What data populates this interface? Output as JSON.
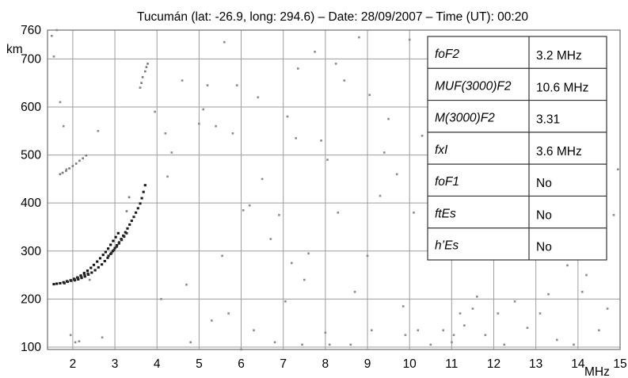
{
  "chart_data": {
    "type": "scatter",
    "title": "Tucumán (lat: -26.9,  long: 294.6) – Date: 28/09/2007 – Time (UT): 00:20",
    "xlabel": "MHz",
    "ylabel": "km",
    "xlim": [
      1.4,
      15
    ],
    "ylim": [
      95,
      760
    ],
    "x_ticks": [
      "2",
      "3",
      "4",
      "5",
      "6",
      "7",
      "8",
      "9",
      "10",
      "11",
      "12",
      "13",
      "14",
      "15"
    ],
    "y_ticks": [
      "100",
      "200",
      "300",
      "400",
      "500",
      "600",
      "700",
      "760"
    ],
    "grid": true,
    "series": [
      {
        "x": [
          1.55,
          1.62,
          1.7,
          1.78,
          1.86,
          1.95,
          2.03,
          2.11,
          2.19,
          2.27,
          2.35,
          2.43,
          2.5,
          2.58,
          2.65,
          2.72,
          2.78,
          2.84,
          2.9,
          2.96,
          3.02,
          3.08
        ],
        "y": [
          231,
          232,
          233,
          235,
          237,
          239,
          242,
          245,
          249,
          254,
          259,
          265,
          271,
          278,
          285,
          292,
          298,
          305,
          313,
          321,
          329,
          337
        ]
      },
      {
        "x": [
          2.05,
          2.13,
          2.21,
          2.29,
          2.37,
          2.45,
          2.53,
          2.61,
          2.69,
          2.76,
          2.83,
          2.9,
          2.95,
          3.0,
          3.05,
          3.1,
          3.15,
          3.2,
          3.25,
          3.3,
          3.35,
          3.4,
          3.45,
          3.5,
          3.55,
          3.6,
          3.64,
          3.68,
          3.72
        ],
        "y": [
          239,
          241,
          244,
          247,
          251,
          255,
          260,
          266,
          272,
          279,
          286,
          294,
          300,
          306,
          312,
          318,
          325,
          332,
          339,
          347,
          355,
          363,
          371,
          380,
          389,
          399,
          410,
          423,
          437
        ]
      },
      {
        "x": [
          1.8,
          1.88,
          1.96,
          2.04,
          2.12,
          2.2,
          2.28,
          2.36
        ],
        "y": [
          233,
          236,
          238,
          241,
          244,
          247,
          250,
          253
        ]
      },
      {
        "x": [
          2.85,
          2.92,
          2.98,
          3.04,
          3.1,
          3.16,
          3.22,
          3.28
        ],
        "y": [
          290,
          296,
          302,
          309,
          316,
          323,
          330,
          337
        ]
      },
      {
        "x": [
          1.7,
          1.76,
          1.84,
          1.92,
          2.0,
          2.08,
          2.16,
          2.24,
          2.32
        ],
        "y": [
          460,
          463,
          467,
          472,
          477,
          482,
          488,
          493,
          499
        ]
      },
      {
        "x": [
          3.28,
          3.34,
          3.6,
          3.63,
          3.66,
          3.72,
          3.75,
          3.78
        ],
        "y": [
          383,
          412,
          640,
          650,
          662,
          674,
          683,
          690
        ]
      },
      {
        "x": [
          1.5,
          1.55,
          1.62,
          1.7,
          1.78,
          1.85,
          1.95,
          2.06,
          2.15,
          2.4,
          2.6,
          2.7,
          3.6,
          3.95,
          4.1,
          4.2,
          4.25,
          4.35,
          4.6,
          4.7,
          4.8,
          5.0,
          5.1,
          5.2,
          5.3,
          5.4,
          5.55,
          5.6,
          5.7,
          5.8,
          5.9,
          6.0,
          6.05,
          6.2,
          6.3,
          6.4,
          6.5,
          6.7,
          6.8,
          6.9,
          7.05,
          7.1,
          7.2,
          7.3,
          7.35,
          7.45,
          7.5,
          7.6,
          7.75,
          7.9,
          8.0,
          8.05,
          8.1,
          8.25,
          8.3,
          8.45,
          8.6,
          8.7,
          8.8,
          9.0,
          9.05,
          9.1,
          9.3,
          9.4,
          9.5,
          9.7,
          9.85,
          9.9,
          10.0,
          10.1,
          10.2,
          10.3,
          10.5,
          10.6,
          10.8,
          11.0,
          11.05,
          11.2,
          11.3,
          11.5,
          11.6,
          11.8,
          11.95,
          12.1,
          12.25,
          12.5,
          12.8,
          13.1,
          13.3,
          13.5,
          13.75,
          13.9,
          14.1,
          14.2,
          14.5,
          14.7,
          14.85,
          14.95
        ],
        "y": [
          748,
          705,
          760,
          610,
          560,
          470,
          125,
          110,
          112,
          240,
          550,
          120,
          640,
          590,
          200,
          545,
          455,
          505,
          655,
          230,
          110,
          565,
          595,
          645,
          155,
          560,
          290,
          735,
          170,
          545,
          645,
          95,
          385,
          395,
          135,
          620,
          450,
          325,
          110,
          375,
          195,
          580,
          275,
          535,
          680,
          105,
          240,
          295,
          715,
          530,
          130,
          490,
          105,
          690,
          380,
          655,
          105,
          215,
          745,
          290,
          625,
          135,
          415,
          505,
          575,
          460,
          185,
          125,
          740,
          380,
          135,
          540,
          105,
          700,
          135,
          110,
          125,
          170,
          145,
          180,
          205,
          125,
          310,
          170,
          105,
          195,
          140,
          170,
          210,
          115,
          270,
          105,
          215,
          250,
          135,
          180,
          375,
          470
        ]
      }
    ],
    "table": [
      {
        "param": "foF2",
        "value": "3.2 MHz"
      },
      {
        "param": "MUF(3000)F2",
        "value": "10.6 MHz"
      },
      {
        "param": "M(3000)F2",
        "value": "3.31"
      },
      {
        "param": "fxI",
        "value": "3.6 MHz"
      },
      {
        "param": "foF1",
        "value": "No"
      },
      {
        "param": "ftEs",
        "value": "No"
      },
      {
        "param": "h’Es",
        "value": "No"
      }
    ]
  }
}
